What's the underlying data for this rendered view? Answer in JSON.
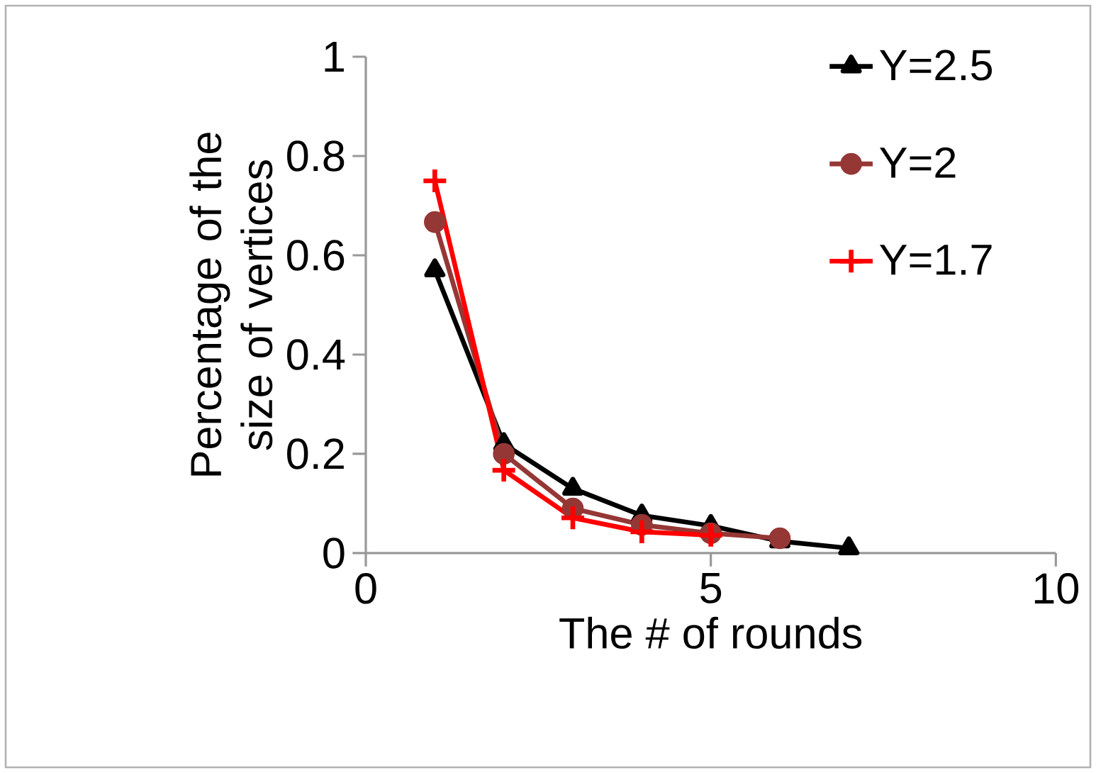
{
  "chart_data": {
    "type": "line",
    "xlabel": "The # of rounds",
    "ylabel": "Percentage of the size of vertices",
    "xlim": [
      0,
      10
    ],
    "xticks": [
      0,
      5,
      10
    ],
    "ylim": [
      0,
      1
    ],
    "yticks": [
      0,
      0.2,
      0.4,
      0.6,
      0.8,
      1
    ],
    "grid": false,
    "legend": "top right",
    "series": [
      {
        "name": "Υ=2.5",
        "color": "#000000",
        "marker": "triangle",
        "x": [
          1,
          2,
          3,
          4,
          5,
          6,
          7
        ],
        "values": [
          0.57,
          0.22,
          0.13,
          0.076,
          0.055,
          0.024,
          0.01
        ]
      },
      {
        "name": "Υ=2",
        "color": "#953735",
        "marker": "circle",
        "x": [
          1,
          2,
          3,
          4,
          5,
          6
        ],
        "values": [
          0.667,
          0.2,
          0.09,
          0.057,
          0.04,
          0.03
        ]
      },
      {
        "name": "Υ=1.7",
        "color": "#ff0000",
        "marker": "cross",
        "x": [
          1,
          2,
          3,
          4,
          5
        ],
        "values": [
          0.75,
          0.167,
          0.071,
          0.043,
          0.036
        ]
      }
    ]
  }
}
